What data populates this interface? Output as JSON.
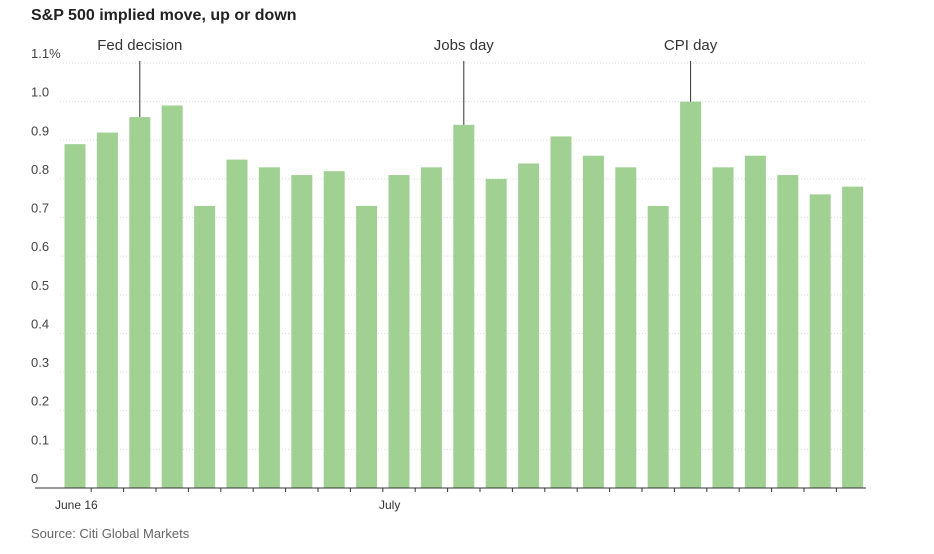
{
  "title": "S&P 500 implied move, up or down",
  "source": "Source: Citi Global Markets",
  "chart_data": {
    "type": "bar",
    "title": "S&P 500 implied move, up or down",
    "xlabel": "",
    "ylabel": "",
    "ylim": [
      0,
      1.1
    ],
    "y_ticks": [
      0,
      0.1,
      0.2,
      0.3,
      0.4,
      0.5,
      0.6,
      0.7,
      0.8,
      0.9,
      1.0,
      1.1
    ],
    "y_tick_labels": [
      "0",
      "0.1",
      "0.2",
      "0.3",
      "0.4",
      "0.5",
      "0.6",
      "0.7",
      "0.8",
      "0.9",
      "1.0",
      "1.1%"
    ],
    "values": [
      0.89,
      0.92,
      0.96,
      0.99,
      0.73,
      0.85,
      0.83,
      0.81,
      0.82,
      0.73,
      0.81,
      0.83,
      0.94,
      0.8,
      0.84,
      0.91,
      0.86,
      0.83,
      0.73,
      1.0,
      0.83,
      0.86,
      0.81,
      0.76,
      0.78
    ],
    "x_labels": [
      {
        "index": 0,
        "text": "June 16"
      },
      {
        "index": 10,
        "text": "July"
      }
    ],
    "annotations": [
      {
        "index": 2,
        "text": "Fed decision"
      },
      {
        "index": 12,
        "text": "Jobs day"
      },
      {
        "index": 19,
        "text": "CPI day"
      }
    ],
    "grid": true,
    "color": "#a0d193"
  }
}
